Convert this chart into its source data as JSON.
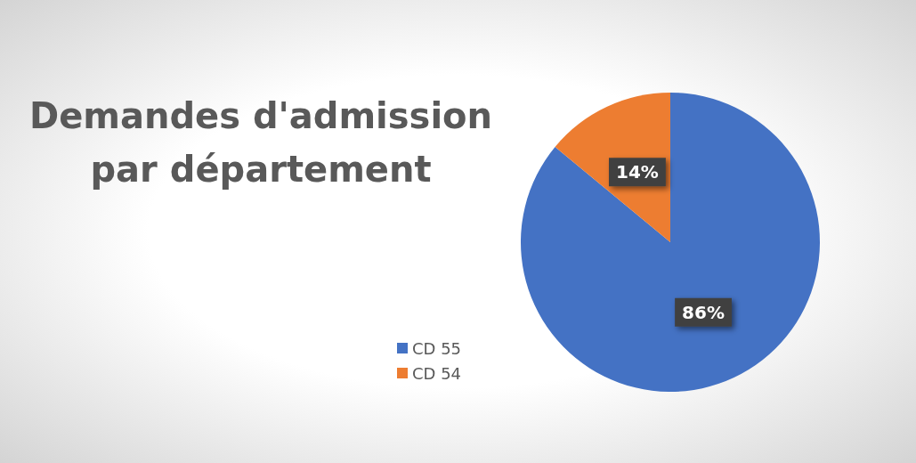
{
  "chart_data": {
    "type": "pie",
    "title": "Demandes d'admission\npar département",
    "categories": [
      "CD 55",
      "CD 54"
    ],
    "values": [
      86,
      14
    ],
    "colors": [
      "#4472c4",
      "#ed7d31"
    ],
    "value_labels": [
      "86%",
      "14%"
    ],
    "legend": "left"
  }
}
